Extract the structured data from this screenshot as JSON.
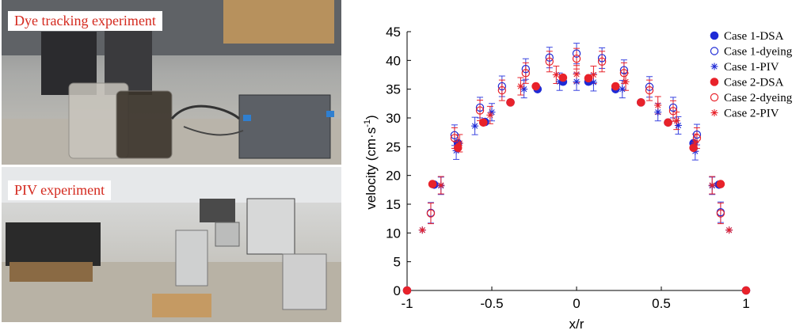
{
  "photos": {
    "dye_label": "Dye tracking experiment",
    "piv_label": "PIV experiment"
  },
  "colors": {
    "case1": "#1f2bd6",
    "case2": "#e8222a",
    "error_case1": "#3a44e0",
    "error_case2": "#e8222a"
  },
  "chart_data": {
    "type": "scatter",
    "title": "",
    "xlabel": "x/r",
    "ylabel_main": "velocity (cm·s",
    "ylabel_sup": "-1",
    "ylabel_close": ")",
    "xlim": [
      -1,
      1
    ],
    "ylim": [
      0,
      45
    ],
    "xticks": [
      -1,
      -0.5,
      0,
      0.5,
      1
    ],
    "xtick_labels": [
      "-1",
      "-0.5",
      "0",
      "0.5",
      "1"
    ],
    "yticks": [
      0,
      5,
      10,
      15,
      20,
      25,
      30,
      35,
      40,
      45
    ],
    "ytick_labels": [
      "0",
      "5",
      "10",
      "15",
      "20",
      "25",
      "30",
      "35",
      "40",
      "45"
    ],
    "grid": false,
    "legend_position": "top-right",
    "series": [
      {
        "name": "Case 1-DSA",
        "marker": "filled-circle",
        "color": "case1",
        "points": [
          [
            -1,
            0
          ],
          [
            -0.84,
            18.4
          ],
          [
            -0.7,
            25.6
          ],
          [
            -0.54,
            29.3
          ],
          [
            -0.39,
            32.7
          ],
          [
            -0.23,
            35.0
          ],
          [
            -0.08,
            36.3
          ],
          [
            0.07,
            36.3
          ],
          [
            0.23,
            35.0
          ],
          [
            0.38,
            32.7
          ],
          [
            0.54,
            29.2
          ],
          [
            0.69,
            25.6
          ],
          [
            0.84,
            18.4
          ],
          [
            1,
            0
          ]
        ]
      },
      {
        "name": "Case 1-dyeing",
        "marker": "open-circle",
        "color": "case1",
        "points": [
          [
            -0.86,
            13.5
          ],
          [
            -0.72,
            27.0
          ],
          [
            -0.57,
            31.8
          ],
          [
            -0.44,
            35.5
          ],
          [
            -0.3,
            38.5
          ],
          [
            -0.16,
            40.5
          ],
          [
            0,
            41.2
          ],
          [
            0.15,
            40.4
          ],
          [
            0.28,
            38.3
          ],
          [
            0.43,
            35.4
          ],
          [
            0.57,
            31.8
          ],
          [
            0.71,
            27.1
          ],
          [
            0.85,
            13.6
          ]
        ]
      },
      {
        "name": "Case 1-PIV",
        "marker": "asterisk",
        "color": "case1",
        "points": [
          [
            -0.91,
            10.5
          ],
          [
            -0.8,
            18.2
          ],
          [
            -0.71,
            24.3
          ],
          [
            -0.6,
            28.6
          ],
          [
            -0.5,
            31.0
          ],
          [
            -0.31,
            35.0
          ],
          [
            -0.1,
            36.3
          ],
          [
            0,
            36.3
          ],
          [
            0.1,
            36.2
          ],
          [
            0.27,
            35.0
          ],
          [
            0.48,
            31.0
          ],
          [
            0.6,
            28.7
          ],
          [
            0.7,
            24.2
          ],
          [
            0.8,
            18.2
          ],
          [
            0.9,
            10.5
          ]
        ]
      },
      {
        "name": "Case 2-DSA",
        "marker": "filled-circle",
        "color": "case2",
        "points": [
          [
            -1,
            0
          ],
          [
            -0.85,
            18.5
          ],
          [
            -0.7,
            24.8
          ],
          [
            -0.55,
            29.2
          ],
          [
            -0.39,
            32.7
          ],
          [
            -0.24,
            35.5
          ],
          [
            -0.08,
            37.0
          ],
          [
            0.07,
            36.9
          ],
          [
            0.23,
            35.5
          ],
          [
            0.38,
            32.7
          ],
          [
            0.54,
            29.2
          ],
          [
            0.69,
            24.8
          ],
          [
            0.85,
            18.5
          ],
          [
            1,
            0
          ]
        ]
      },
      {
        "name": "Case 2-dyeing",
        "marker": "open-circle",
        "color": "case2",
        "points": [
          [
            -0.86,
            13.4
          ],
          [
            -0.72,
            26.5
          ],
          [
            -0.57,
            31.3
          ],
          [
            -0.44,
            34.8
          ],
          [
            -0.3,
            37.8
          ],
          [
            -0.16,
            39.8
          ],
          [
            0,
            40.3
          ],
          [
            0.15,
            39.8
          ],
          [
            0.28,
            37.8
          ],
          [
            0.43,
            34.8
          ],
          [
            0.57,
            31.2
          ],
          [
            0.71,
            26.5
          ],
          [
            0.85,
            13.4
          ]
        ]
      },
      {
        "name": "Case 2-PIV",
        "marker": "asterisk",
        "color": "case2",
        "points": [
          [
            -0.91,
            10.5
          ],
          [
            -0.8,
            18.3
          ],
          [
            -0.69,
            25.6
          ],
          [
            -0.51,
            30.5
          ],
          [
            -0.33,
            35.5
          ],
          [
            -0.12,
            37.5
          ],
          [
            0,
            37.6
          ],
          [
            0.1,
            37.5
          ],
          [
            0.29,
            36.3
          ],
          [
            0.48,
            32.2
          ],
          [
            0.59,
            29.5
          ],
          [
            0.7,
            25.7
          ],
          [
            0.8,
            18.3
          ],
          [
            0.9,
            10.5
          ]
        ]
      }
    ]
  }
}
